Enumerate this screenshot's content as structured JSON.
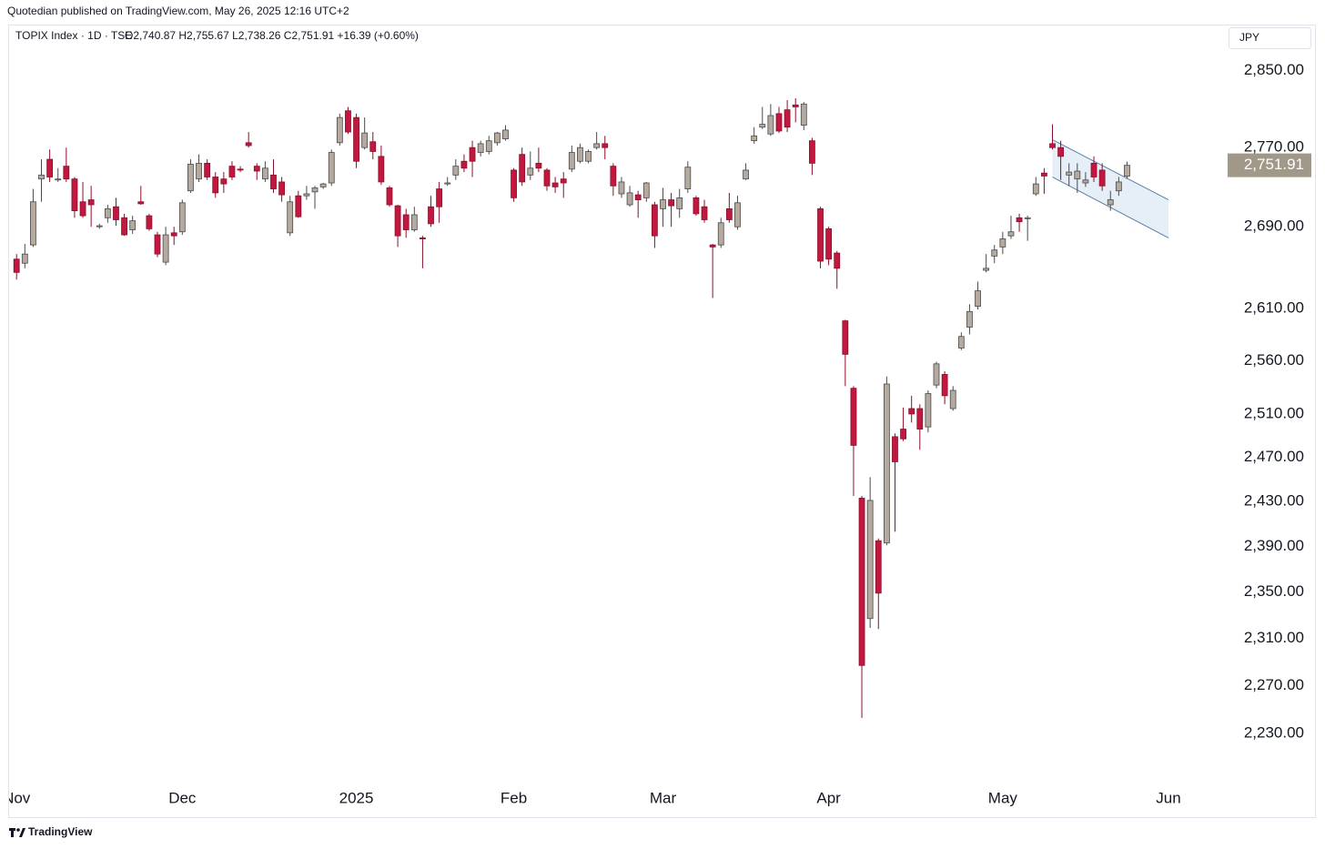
{
  "header": {
    "published": "Quotedian published on TradingView.com, May 26, 2025 12:16 UTC+2"
  },
  "footer": {
    "brand": "TradingView"
  },
  "chart_data": {
    "type": "candlestick",
    "title": "TOPIX Index · 1D · TSE",
    "ohlc_legend": "O2,740.87 H2,755.67 L2,738.26 C2,751.91 +16.39 (+0.60%)",
    "currency": "JPY",
    "log": true,
    "up_color": "#b4aa9f",
    "down_color": "#c2183f",
    "up_border": "#4a4a4a",
    "down_border": "#8a0f2a",
    "last_price_label": "2,751.91",
    "last_price_color": "#a09888",
    "xlim": [
      -0.9,
      145.7
    ],
    "xticks": [
      {
        "value": 0,
        "label": "Nov"
      },
      {
        "value": 20,
        "label": "Dec"
      },
      {
        "value": 41,
        "label": "2025"
      },
      {
        "value": 60,
        "label": "Feb"
      },
      {
        "value": 78,
        "label": "Mar"
      },
      {
        "value": 98,
        "label": "Apr"
      },
      {
        "value": 119,
        "label": "May"
      },
      {
        "value": 139,
        "label": "Jun"
      }
    ],
    "ylim": [
      2190,
      2898
    ],
    "yticks": [
      {
        "value": 2230,
        "label": "2,230.00"
      },
      {
        "value": 2270,
        "label": "2,270.00"
      },
      {
        "value": 2310,
        "label": "2,310.00"
      },
      {
        "value": 2350,
        "label": "2,350.00"
      },
      {
        "value": 2390,
        "label": "2,390.00"
      },
      {
        "value": 2430,
        "label": "2,430.00"
      },
      {
        "value": 2470,
        "label": "2,470.00"
      },
      {
        "value": 2510,
        "label": "2,510.00"
      },
      {
        "value": 2560,
        "label": "2,560.00"
      },
      {
        "value": 2610,
        "label": "2,610.00"
      },
      {
        "value": 2690,
        "label": "2,690.00"
      },
      {
        "value": 2770,
        "label": "2,770.00"
      },
      {
        "value": 2850,
        "label": "2,850.00"
      }
    ],
    "channel": {
      "x": [
        125,
        139
      ],
      "upper": [
        2778,
        2717
      ],
      "lower": [
        2740,
        2679
      ],
      "color": "#5b7fa8",
      "fill": "#e6eff8"
    },
    "open": [
      2658,
      2654,
      2672,
      2738,
      2758,
      2737,
      2751,
      2738,
      2715,
      2717,
      2690,
      2699,
      2710,
      2699,
      2687,
      2715,
      2701,
      2682,
      2655,
      2684,
      2685,
      2726,
      2738,
      2754,
      2740,
      2738,
      2751,
      2748,
      2775,
      2751,
      2738,
      2742,
      2735,
      2684,
      2721,
      2721,
      2725,
      2730,
      2734,
      2775,
      2808,
      2801,
      2770,
      2776,
      2761,
      2729,
      2711,
      2702,
      2687,
      2679,
      2710,
      2728,
      2733,
      2742,
      2756,
      2770,
      2765,
      2766,
      2775,
      2779,
      2747,
      2763,
      2742,
      2754,
      2747,
      2734,
      2738,
      2748,
      2756,
      2756,
      2770,
      2774,
      2751,
      2723,
      2712,
      2722,
      2719,
      2712,
      2708,
      2717,
      2708,
      2728,
      2719,
      2710,
      2672,
      2672,
      2708,
      2690,
      2738,
      2777,
      2791,
      2784,
      2805,
      2809,
      2814,
      2793,
      2777,
      2708,
      2688,
      2664,
      2598,
      2534,
      2433,
      2327,
      2395,
      2393,
      2489,
      2496,
      2515,
      2515,
      2498,
      2537,
      2547,
      2515,
      2572,
      2592,
      2612,
      2647,
      2661,
      2670,
      2681,
      2699,
      2698,
      2723,
      2744,
      2774,
      2770,
      2742,
      2738,
      2734,
      2754,
      2747,
      2712,
      2726,
      2740.87
    ],
    "high": [
      2663,
      2673,
      2728,
      2758,
      2768,
      2749,
      2770,
      2740,
      2735,
      2731,
      2693,
      2712,
      2719,
      2703,
      2701,
      2731,
      2703,
      2685,
      2690,
      2690,
      2717,
      2758,
      2763,
      2758,
      2745,
      2745,
      2756,
      2751,
      2786,
      2754,
      2756,
      2758,
      2740,
      2721,
      2726,
      2731,
      2731,
      2734,
      2768,
      2805,
      2812,
      2805,
      2801,
      2786,
      2772,
      2731,
      2712,
      2708,
      2710,
      2681,
      2721,
      2735,
      2740,
      2758,
      2763,
      2777,
      2777,
      2782,
      2786,
      2793,
      2749,
      2770,
      2766,
      2770,
      2749,
      2740,
      2745,
      2772,
      2774,
      2768,
      2786,
      2782,
      2754,
      2740,
      2731,
      2726,
      2735,
      2715,
      2729,
      2724,
      2728,
      2756,
      2721,
      2717,
      2673,
      2699,
      2724,
      2721,
      2754,
      2791,
      2812,
      2815,
      2812,
      2819,
      2821,
      2817,
      2780,
      2710,
      2690,
      2666,
      2599,
      2536,
      2435,
      2452,
      2397,
      2545,
      2492,
      2516,
      2527,
      2519,
      2532,
      2559,
      2550,
      2536,
      2587,
      2614,
      2636,
      2663,
      2672,
      2685,
      2701,
      2703,
      2701,
      2740,
      2749,
      2794,
      2777,
      2754,
      2754,
      2745,
      2761,
      2754,
      2726,
      2740,
      2755.67
    ],
    "low": [
      2638,
      2649,
      2670,
      2715,
      2735,
      2735,
      2735,
      2699,
      2699,
      2690,
      2688,
      2694,
      2691,
      2681,
      2683,
      2712,
      2686,
      2660,
      2652,
      2672,
      2682,
      2724,
      2735,
      2737,
      2719,
      2724,
      2737,
      2745,
      2770,
      2737,
      2735,
      2724,
      2715,
      2681,
      2699,
      2717,
      2708,
      2728,
      2731,
      2772,
      2784,
      2749,
      2768,
      2758,
      2732,
      2710,
      2670,
      2679,
      2685,
      2649,
      2690,
      2694,
      2731,
      2737,
      2745,
      2740,
      2761,
      2763,
      2772,
      2777,
      2715,
      2731,
      2737,
      2745,
      2726,
      2724,
      2719,
      2745,
      2754,
      2754,
      2768,
      2758,
      2721,
      2719,
      2710,
      2699,
      2715,
      2669,
      2690,
      2690,
      2699,
      2724,
      2701,
      2694,
      2620,
      2669,
      2694,
      2687,
      2737,
      2774,
      2789,
      2782,
      2785,
      2786,
      2796,
      2788,
      2742,
      2649,
      2652,
      2629,
      2536,
      2435,
      2243,
      2319,
      2318,
      2391,
      2403,
      2485,
      2502,
      2477,
      2493,
      2534,
      2519,
      2513,
      2570,
      2585,
      2609,
      2645,
      2654,
      2663,
      2678,
      2685,
      2676,
      2721,
      2723,
      2768,
      2737,
      2731,
      2724,
      2730,
      2735,
      2726,
      2706,
      2721,
      2738.26
    ],
    "close": [
      2645,
      2663,
      2715,
      2742,
      2740,
      2738,
      2738,
      2706,
      2701,
      2712,
      2691,
      2708,
      2697,
      2682,
      2696,
      2713,
      2688,
      2663,
      2682,
      2681,
      2714,
      2753,
      2754,
      2740,
      2724,
      2733,
      2740,
      2747,
      2772,
      2746,
      2749,
      2728,
      2722,
      2715,
      2700,
      2723,
      2729,
      2733,
      2765,
      2801,
      2786,
      2756,
      2785,
      2766,
      2735,
      2712,
      2681,
      2687,
      2702,
      2678,
      2693,
      2710,
      2734,
      2751,
      2749,
      2756,
      2774,
      2777,
      2785,
      2788,
      2719,
      2735,
      2749,
      2749,
      2731,
      2730,
      2734,
      2765,
      2770,
      2766,
      2774,
      2770,
      2731,
      2735,
      2724,
      2717,
      2734,
      2681,
      2717,
      2711,
      2719,
      2750,
      2703,
      2697,
      2670,
      2694,
      2697,
      2714,
      2747,
      2782,
      2794,
      2803,
      2787,
      2791,
      2812,
      2815,
      2754,
      2656,
      2658,
      2649,
      2566,
      2481,
      2287,
      2431,
      2349,
      2538,
      2466,
      2487,
      2510,
      2496,
      2529,
      2557,
      2527,
      2532,
      2583,
      2607,
      2627,
      2649,
      2667,
      2678,
      2685,
      2695,
      2699,
      2733,
      2741,
      2770,
      2761,
      2745,
      2746,
      2737,
      2740,
      2731,
      2717,
      2735,
      2751.91
    ]
  }
}
